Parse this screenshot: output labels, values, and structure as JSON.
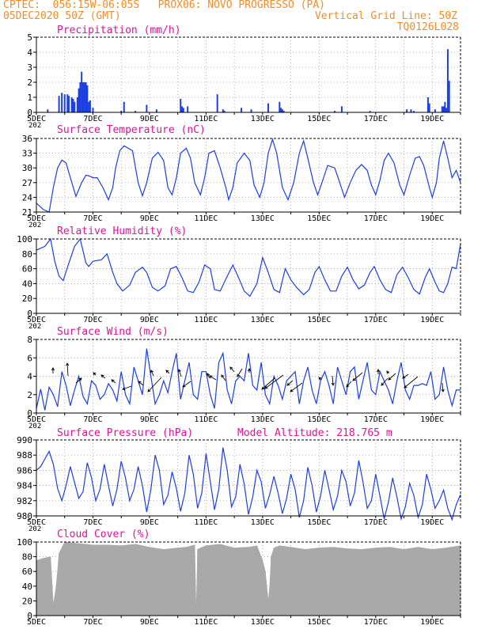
{
  "header": {
    "line1": "CPTEC:  056:15W-06:05S   PROX06: NOVO PROGRESSO (PA)",
    "line2_left": "05DEC2020 50Z (GMT)",
    "line2_right": "Vertical Grid Line: 50Z",
    "line3_right": "TQ0126L028",
    "color": "#f28c28"
  },
  "colors": {
    "title": "#e0129a",
    "series": "#1c3fe0",
    "cloud": "#a9a9a9",
    "grid": "#999999",
    "axis": "#000000"
  },
  "x_tick_labels": [
    "5DEC",
    "7DEC",
    "9DEC",
    "11DEC",
    "13DEC",
    "15DEC",
    "17DEC",
    "19DEC"
  ],
  "cut_label": "202",
  "chart_data": [
    {
      "type": "bar",
      "title": "Precipitation (mm/h)",
      "ylim": [
        0,
        5
      ],
      "yticks": [
        0,
        1,
        2,
        3,
        4,
        5
      ],
      "xlim": [
        0,
        15
      ],
      "grid": true,
      "x": [
        0.4,
        0.8,
        0.9,
        1.0,
        1.1,
        1.15,
        1.25,
        1.3,
        1.35,
        1.45,
        1.5,
        1.55,
        1.6,
        1.65,
        1.7,
        1.75,
        1.8,
        1.85,
        1.9,
        2.0,
        3.0,
        3.1,
        3.5,
        3.9,
        4.25,
        5.1,
        5.15,
        5.2,
        5.35,
        6.4,
        6.6,
        6.65,
        7.25,
        7.6,
        8.2,
        8.6,
        8.65,
        8.7,
        8.75,
        10.55,
        10.8,
        11.8,
        13.1,
        13.25,
        13.35,
        13.85,
        13.9,
        14.1,
        14.35,
        14.4,
        14.45,
        14.5,
        14.55,
        14.6
      ],
      "values": [
        0.2,
        1.1,
        1.3,
        1.2,
        1.2,
        1.1,
        1.0,
        0.9,
        0.7,
        1.0,
        1.6,
        2.0,
        2.7,
        2.0,
        2.0,
        2.0,
        1.8,
        0.7,
        0.8,
        0.3,
        0.1,
        0.7,
        0.1,
        0.5,
        0.2,
        0.9,
        0.4,
        0.3,
        0.4,
        1.2,
        0.2,
        0.1,
        0.3,
        0.2,
        0.6,
        0.7,
        0.3,
        0.2,
        0.1,
        0.1,
        0.4,
        0.1,
        0.2,
        0.2,
        0.1,
        1.0,
        0.6,
        0.2,
        0.4,
        0.4,
        0.7,
        0.3,
        4.2,
        2.1
      ]
    },
    {
      "type": "line",
      "title": "Surface Temperature (nC)",
      "ylim": [
        21,
        36
      ],
      "yticks": [
        21,
        24,
        27,
        30,
        33,
        36
      ],
      "xlim": [
        0,
        15
      ],
      "grid": true,
      "x": [
        0,
        0.25,
        0.45,
        0.6,
        0.75,
        0.9,
        1.05,
        1.2,
        1.4,
        1.6,
        1.75,
        1.85,
        2.0,
        2.15,
        2.35,
        2.55,
        2.7,
        2.8,
        2.95,
        3.1,
        3.4,
        3.6,
        3.75,
        3.9,
        4.1,
        4.3,
        4.5,
        4.65,
        4.8,
        4.95,
        5.1,
        5.3,
        5.45,
        5.6,
        5.8,
        5.95,
        6.1,
        6.3,
        6.5,
        6.7,
        6.8,
        6.95,
        7.1,
        7.35,
        7.55,
        7.7,
        7.9,
        8.05,
        8.2,
        8.35,
        8.5,
        8.7,
        8.9,
        9.1,
        9.3,
        9.45,
        9.6,
        9.8,
        9.95,
        10.1,
        10.3,
        10.55,
        10.7,
        10.9,
        11.1,
        11.3,
        11.5,
        11.7,
        11.85,
        12.0,
        12.15,
        12.3,
        12.45,
        12.65,
        12.85,
        13.0,
        13.2,
        13.4,
        13.55,
        13.7,
        13.9,
        14.0,
        14.15,
        14.25,
        14.4,
        14.55,
        14.7,
        14.85,
        15.0
      ],
      "values": [
        22.8,
        21.5,
        21.0,
        26.0,
        30.0,
        31.6,
        31.0,
        28.0,
        24.2,
        27.0,
        28.5,
        28.4,
        28.0,
        28.0,
        26.0,
        23.5,
        26.0,
        30.0,
        33.5,
        34.5,
        33.5,
        27.0,
        24.3,
        27.0,
        32.0,
        33.2,
        31.5,
        26.0,
        24.5,
        28.0,
        33.0,
        34.0,
        32.0,
        27.0,
        24.5,
        28.0,
        33.0,
        33.5,
        30.0,
        26.0,
        23.5,
        26.0,
        31.0,
        33.0,
        31.5,
        26.5,
        24.0,
        27.0,
        33.0,
        35.8,
        33.0,
        26.0,
        23.5,
        27.0,
        33.0,
        35.5,
        32.0,
        27.0,
        24.5,
        27.0,
        30.5,
        30.0,
        27.5,
        24.0,
        27.0,
        29.5,
        30.7,
        29.5,
        26.5,
        24.5,
        27.5,
        31.5,
        33.0,
        31.0,
        26.5,
        24.5,
        28.5,
        32.0,
        32.3,
        30.5,
        26.0,
        24.0,
        27.0,
        32.0,
        35.5,
        32.0,
        28.0,
        29.5,
        27.0
      ]
    },
    {
      "type": "line",
      "title": "Relative Humidity (%)",
      "ylim": [
        0,
        100
      ],
      "yticks": [
        0,
        20,
        40,
        60,
        80,
        100
      ],
      "xlim": [
        0,
        15
      ],
      "grid": true,
      "x": [
        0,
        0.3,
        0.5,
        0.65,
        0.8,
        0.95,
        1.1,
        1.35,
        1.55,
        1.75,
        1.85,
        2.0,
        2.3,
        2.5,
        2.7,
        2.85,
        3.05,
        3.3,
        3.5,
        3.75,
        3.9,
        4.1,
        4.3,
        4.55,
        4.75,
        4.95,
        5.15,
        5.35,
        5.55,
        5.75,
        5.95,
        6.15,
        6.3,
        6.5,
        6.75,
        6.95,
        7.15,
        7.35,
        7.55,
        7.8,
        8.0,
        8.2,
        8.4,
        8.6,
        8.8,
        9.0,
        9.2,
        9.45,
        9.65,
        9.85,
        10.0,
        10.2,
        10.4,
        10.6,
        10.8,
        11.0,
        11.2,
        11.4,
        11.6,
        11.8,
        11.95,
        12.15,
        12.35,
        12.55,
        12.75,
        12.95,
        13.15,
        13.35,
        13.55,
        13.75,
        13.9,
        14.1,
        14.25,
        14.4,
        14.55,
        14.7,
        14.85,
        15.0
      ],
      "values": [
        85,
        90,
        100,
        70,
        50,
        44,
        62,
        90,
        100,
        68,
        63,
        70,
        72,
        80,
        55,
        40,
        30,
        38,
        55,
        62,
        55,
        35,
        30,
        37,
        60,
        63,
        48,
        30,
        28,
        42,
        65,
        60,
        32,
        30,
        50,
        65,
        48,
        30,
        23,
        40,
        75,
        55,
        32,
        28,
        60,
        45,
        35,
        25,
        32,
        55,
        63,
        45,
        30,
        30,
        50,
        62,
        45,
        33,
        38,
        55,
        63,
        45,
        32,
        28,
        52,
        62,
        48,
        32,
        26,
        48,
        60,
        42,
        30,
        28,
        40,
        62,
        60,
        93
      ]
    },
    {
      "type": "line",
      "title": "Surface Wind (m/s)",
      "ylim": [
        0,
        8
      ],
      "yticks": [
        0,
        2,
        4,
        6,
        8
      ],
      "xlim": [
        0,
        15
      ],
      "grid": true,
      "x": [
        0,
        0.15,
        0.3,
        0.45,
        0.6,
        0.75,
        0.9,
        1.05,
        1.2,
        1.35,
        1.5,
        1.65,
        1.8,
        1.95,
        2.1,
        2.25,
        2.4,
        2.55,
        2.7,
        2.85,
        3.0,
        3.15,
        3.3,
        3.45,
        3.6,
        3.75,
        3.9,
        4.05,
        4.2,
        4.35,
        4.5,
        4.65,
        4.8,
        4.95,
        5.1,
        5.25,
        5.4,
        5.55,
        5.7,
        5.85,
        6.0,
        6.15,
        6.3,
        6.45,
        6.6,
        6.75,
        6.9,
        7.05,
        7.2,
        7.35,
        7.5,
        7.65,
        7.8,
        7.95,
        8.1,
        8.25,
        8.4,
        8.55,
        8.7,
        8.85,
        9.0,
        9.15,
        9.3,
        9.45,
        9.6,
        9.75,
        9.9,
        10.05,
        10.2,
        10.35,
        10.5,
        10.65,
        10.8,
        10.95,
        11.1,
        11.25,
        11.4,
        11.55,
        11.7,
        11.85,
        12.0,
        12.15,
        12.3,
        12.45,
        12.6,
        12.75,
        12.9,
        13.05,
        13.2,
        13.35,
        13.5,
        13.65,
        13.8,
        13.95,
        14.1,
        14.25,
        14.4,
        14.55,
        14.7,
        14.85,
        15.0
      ],
      "values": [
        0.5,
        2.6,
        0.3,
        2.8,
        2.0,
        0.7,
        4.5,
        3.0,
        0.8,
        2.5,
        4.0,
        1.8,
        1.0,
        3.5,
        3.0,
        1.5,
        2.0,
        3.2,
        2.5,
        1.3,
        4.5,
        2.0,
        1.0,
        5.0,
        3.5,
        2.0,
        7.0,
        4.0,
        1.0,
        2.0,
        3.5,
        2.2,
        4.5,
        6.5,
        1.5,
        3.5,
        5.5,
        2.0,
        1.5,
        4.5,
        4.5,
        2.0,
        0.5,
        5.5,
        6.5,
        2.5,
        1.0,
        3.5,
        4.0,
        3.5,
        6.5,
        3.0,
        2.5,
        5.5,
        2.0,
        1.0,
        4.0,
        3.0,
        1.5,
        3.5,
        4.0,
        4.5,
        1.0,
        3.5,
        5.0,
        2.5,
        1.0,
        3.5,
        4.5,
        3.0,
        1.0,
        5.0,
        3.5,
        2.0,
        4.5,
        5.0,
        1.5,
        3.5,
        5.5,
        2.5,
        2.0,
        4.5,
        3.5,
        2.5,
        1.0,
        3.5,
        5.5,
        2.5,
        1.5,
        3.0,
        3.0,
        3.2,
        3.0,
        4.5,
        1.5,
        2.0,
        5.0,
        2.5,
        0.8,
        2.5,
        2.5
      ]
    },
    {
      "type": "line",
      "title": "Surface Pressure (hPa)",
      "annotation": "Model Altitude: 218.765 m",
      "ylim": [
        980,
        990
      ],
      "yticks": [
        980,
        982,
        984,
        986,
        988,
        990
      ],
      "xlim": [
        0,
        15
      ],
      "grid": true,
      "x": [
        0,
        0.15,
        0.3,
        0.45,
        0.6,
        0.75,
        0.9,
        1.05,
        1.2,
        1.35,
        1.5,
        1.65,
        1.8,
        1.95,
        2.1,
        2.25,
        2.4,
        2.55,
        2.7,
        2.85,
        3.0,
        3.15,
        3.3,
        3.45,
        3.6,
        3.75,
        3.9,
        4.05,
        4.2,
        4.35,
        4.5,
        4.65,
        4.8,
        4.95,
        5.1,
        5.25,
        5.4,
        5.55,
        5.7,
        5.85,
        6.0,
        6.15,
        6.3,
        6.45,
        6.6,
        6.75,
        6.9,
        7.05,
        7.2,
        7.35,
        7.5,
        7.65,
        7.8,
        7.95,
        8.1,
        8.25,
        8.4,
        8.55,
        8.7,
        8.85,
        9.0,
        9.15,
        9.3,
        9.45,
        9.6,
        9.75,
        9.9,
        10.05,
        10.2,
        10.35,
        10.5,
        10.65,
        10.8,
        10.95,
        11.1,
        11.25,
        11.4,
        11.55,
        11.7,
        11.85,
        12.0,
        12.15,
        12.3,
        12.45,
        12.6,
        12.75,
        12.9,
        13.05,
        13.2,
        13.35,
        13.5,
        13.65,
        13.8,
        13.95,
        14.1,
        14.25,
        14.4,
        14.55,
        14.7,
        14.85,
        15.0
      ],
      "values": [
        986.0,
        986.5,
        987.5,
        988.5,
        986.8,
        983.6,
        982.0,
        984.0,
        986.5,
        984.4,
        982.3,
        983.2,
        987.0,
        985.0,
        982.0,
        983.5,
        986.8,
        984.0,
        981.3,
        983.5,
        987.2,
        985.0,
        982.0,
        983.5,
        986.5,
        984.0,
        980.5,
        983.5,
        988.0,
        986.0,
        981.5,
        982.7,
        985.8,
        983.6,
        980.6,
        983.0,
        988.0,
        985.5,
        981.0,
        983.0,
        988.2,
        984.5,
        980.8,
        983.5,
        989.0,
        986.0,
        981.2,
        982.5,
        986.8,
        984.2,
        980.2,
        982.5,
        986.0,
        984.5,
        981.0,
        982.8,
        985.2,
        983.0,
        980.3,
        982.3,
        985.5,
        983.5,
        979.8,
        982.0,
        986.4,
        984.0,
        980.5,
        982.6,
        986.0,
        983.5,
        980.8,
        982.6,
        986.0,
        984.5,
        981.3,
        983.0,
        987.3,
        984.5,
        981.0,
        982.0,
        985.5,
        982.6,
        979.6,
        981.8,
        985.0,
        982.5,
        979.6,
        981.2,
        984.3,
        982.7,
        979.8,
        981.5,
        985.5,
        983.5,
        981.0,
        982.0,
        983.4,
        981.0,
        979.5,
        981.5,
        982.8
      ]
    },
    {
      "type": "bar",
      "title": "Cloud Cover (%)",
      "ylim": [
        0,
        100
      ],
      "yticks": [
        0,
        20,
        40,
        60,
        80,
        100
      ],
      "xlim": [
        0,
        15
      ],
      "grid": true,
      "x": [
        0,
        0.25,
        0.5,
        0.6,
        0.7,
        0.8,
        1.0,
        1.5,
        2.0,
        2.5,
        3.0,
        3.5,
        4.0,
        4.5,
        5.0,
        5.3,
        5.6,
        5.65,
        5.7,
        5.8,
        6.0,
        6.5,
        7.0,
        7.5,
        7.8,
        8.0,
        8.1,
        8.2,
        8.25,
        8.3,
        8.4,
        8.6,
        9.0,
        9.5,
        10.0,
        10.5,
        11.0,
        11.5,
        12.0,
        12.5,
        13.0,
        13.5,
        14.0,
        14.5,
        15.0
      ],
      "values": [
        75,
        78,
        80,
        15,
        40,
        85,
        100,
        98,
        96,
        96,
        95,
        97,
        93,
        90,
        92,
        93,
        96,
        5,
        90,
        92,
        95,
        97,
        92,
        93,
        95,
        75,
        60,
        20,
        40,
        80,
        92,
        95,
        93,
        90,
        92,
        93,
        91,
        90,
        92,
        93,
        90,
        93,
        90,
        92,
        95
      ]
    }
  ]
}
